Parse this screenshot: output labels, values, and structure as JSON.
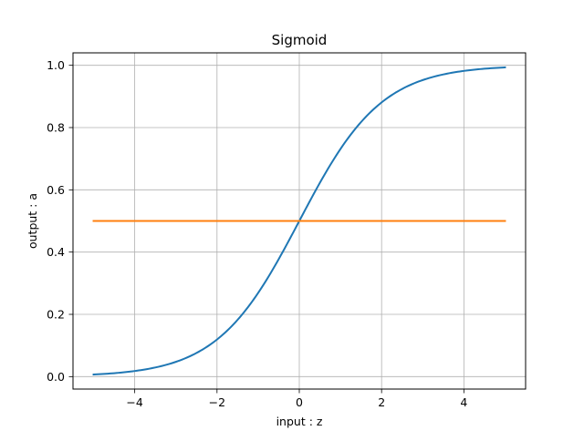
{
  "chart_data": {
    "type": "line",
    "title": "Sigmoid",
    "xlabel": "input : z",
    "ylabel": "output : a",
    "xlim": [
      -5.5,
      5.5
    ],
    "ylim": [
      -0.04,
      1.04
    ],
    "xticks": [
      -4,
      -2,
      0,
      2,
      4
    ],
    "xtick_labels": [
      "−4",
      "−2",
      "0",
      "2",
      "4"
    ],
    "yticks": [
      0.0,
      0.2,
      0.4,
      0.6,
      0.8,
      1.0
    ],
    "ytick_labels": [
      "0.0",
      "0.2",
      "0.4",
      "0.6",
      "0.8",
      "1.0"
    ],
    "grid": true,
    "series": [
      {
        "color": "#1f77b4",
        "x": [
          -5,
          -4.5,
          -4,
          -3.5,
          -3,
          -2.5,
          -2,
          -1.5,
          -1,
          -0.5,
          0,
          0.5,
          1,
          1.5,
          2,
          2.5,
          3,
          3.5,
          4,
          4.5,
          5
        ],
        "y": [
          0.0067,
          0.011,
          0.018,
          0.0293,
          0.0474,
          0.0759,
          0.1192,
          0.1824,
          0.2689,
          0.3775,
          0.5,
          0.6225,
          0.7311,
          0.8176,
          0.8808,
          0.9241,
          0.9526,
          0.9707,
          0.982,
          0.989,
          0.9933
        ]
      },
      {
        "color": "#ff7f0e",
        "x": [
          -5,
          5
        ],
        "y": [
          0.5,
          0.5
        ]
      }
    ]
  }
}
